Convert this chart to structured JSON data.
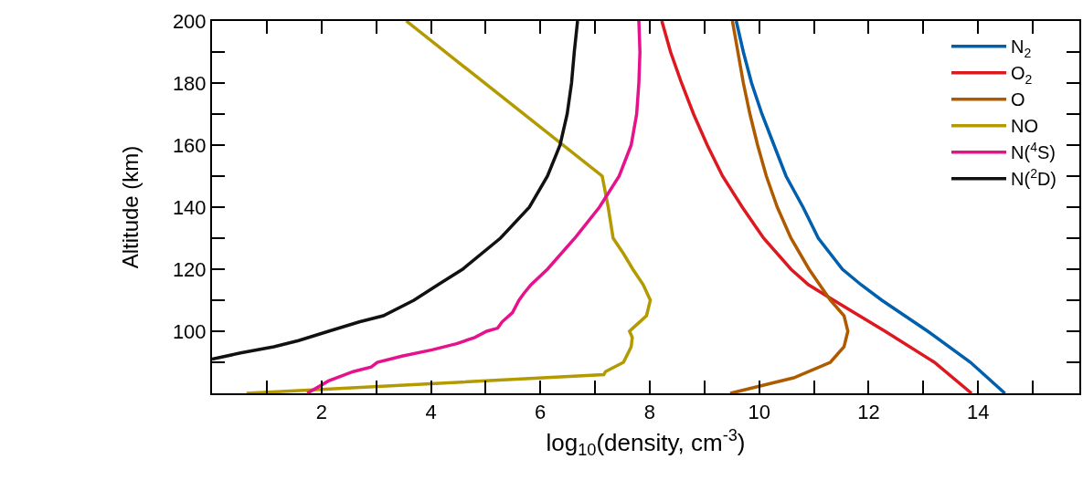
{
  "chart_data": {
    "type": "line",
    "xlabel": "log$_{10}$(density, cm$^{-3}$)",
    "ylabel": "Altitude (km)",
    "xlim": [
      0,
      15.85
    ],
    "ylim": [
      80,
      200
    ],
    "xticks": [
      {
        "value": 1,
        "label": null
      },
      2,
      {
        "value": 3,
        "label": null
      },
      4,
      {
        "value": 5,
        "label": null
      },
      6,
      {
        "value": 7,
        "label": null
      },
      8,
      {
        "value": 9,
        "label": null
      },
      10,
      {
        "value": 11,
        "label": null
      },
      12,
      {
        "value": 13,
        "label": null
      },
      14,
      {
        "value": 15,
        "label": null
      }
    ],
    "yticks": [
      {
        "value": 90,
        "label": null
      },
      100,
      {
        "value": 110,
        "label": null
      },
      120,
      {
        "value": 130,
        "label": null
      },
      140,
      {
        "value": 150,
        "label": null
      },
      160,
      {
        "value": 170,
        "label": null
      },
      180,
      {
        "value": 190,
        "label": null
      },
      200
    ],
    "legend": "top right",
    "marker": "none",
    "line_style": "solid",
    "series": [
      {
        "name": "N$_{2}$",
        "color": "#0060ad",
        "x": [
          9.58,
          9.71,
          9.86,
          10.05,
          10.27,
          10.49,
          10.8,
          11.08,
          11.52,
          11.86,
          12.24,
          13.08,
          13.86,
          14.49
        ],
        "values": [
          200,
          190,
          180,
          170,
          160,
          150,
          140,
          130,
          120,
          115,
          110,
          100,
          90,
          80
        ]
      },
      {
        "name": "O$_{2}$",
        "color": "#dd181f",
        "x": [
          8.22,
          8.38,
          8.58,
          8.8,
          9.05,
          9.33,
          9.69,
          10.08,
          10.58,
          10.9,
          11.36,
          12.3,
          13.2,
          13.88
        ],
        "values": [
          200,
          190,
          180,
          170,
          160,
          150,
          140,
          130,
          120,
          115,
          110,
          100,
          90,
          80
        ]
      },
      {
        "name": "O",
        "color": "#b05a00",
        "x": [
          9.51,
          9.61,
          9.71,
          9.83,
          9.97,
          10.13,
          10.33,
          10.58,
          10.91,
          11.3,
          11.55,
          11.62,
          11.55,
          11.3,
          10.63,
          9.47
        ],
        "values": [
          200,
          190,
          180,
          170,
          160,
          150,
          140,
          130,
          120,
          110,
          105,
          100,
          95,
          90,
          85,
          80
        ]
      },
      {
        "name": "NO",
        "color": "#b39a00",
        "x": [
          3.55,
          7.13,
          7.24,
          7.33,
          7.52,
          7.69,
          7.88,
          8.01,
          7.94,
          7.69,
          7.63,
          7.68,
          7.66,
          7.52,
          7.19,
          7.16,
          0.63
        ],
        "values": [
          200,
          150,
          140,
          130,
          125,
          120,
          115,
          110,
          105,
          101,
          100,
          98,
          95,
          90,
          87,
          86,
          80
        ]
      },
      {
        "name": "N($^{4}$S)",
        "color": "#e5128c",
        "x": [
          7.8,
          7.82,
          7.8,
          7.76,
          7.66,
          7.44,
          7.08,
          6.63,
          6.13,
          5.83,
          5.69,
          5.61,
          5.49,
          5.3,
          5.22,
          5.02,
          4.8,
          4.47,
          4.02,
          3.47,
          3.02,
          2.91,
          2.58,
          2.13,
          1.74
        ],
        "values": [
          200,
          190,
          180,
          170,
          160,
          150,
          140,
          130,
          120,
          115,
          112,
          110,
          106,
          103,
          101,
          100,
          98,
          96,
          94,
          92,
          90,
          88.5,
          87,
          84,
          80
        ]
      },
      {
        "name": "N($^{2}$D)",
        "color": "#111111",
        "x": [
          6.68,
          6.62,
          6.57,
          6.49,
          6.36,
          6.13,
          5.8,
          5.27,
          4.58,
          4.13,
          3.69,
          3.13,
          2.69,
          2.13,
          1.58,
          1.13,
          0.52,
          0.0
        ],
        "values": [
          200,
          190,
          180,
          170,
          160,
          150,
          140,
          130,
          120,
          115,
          110,
          105,
          103,
          100,
          97,
          95,
          93,
          91
        ]
      }
    ]
  }
}
